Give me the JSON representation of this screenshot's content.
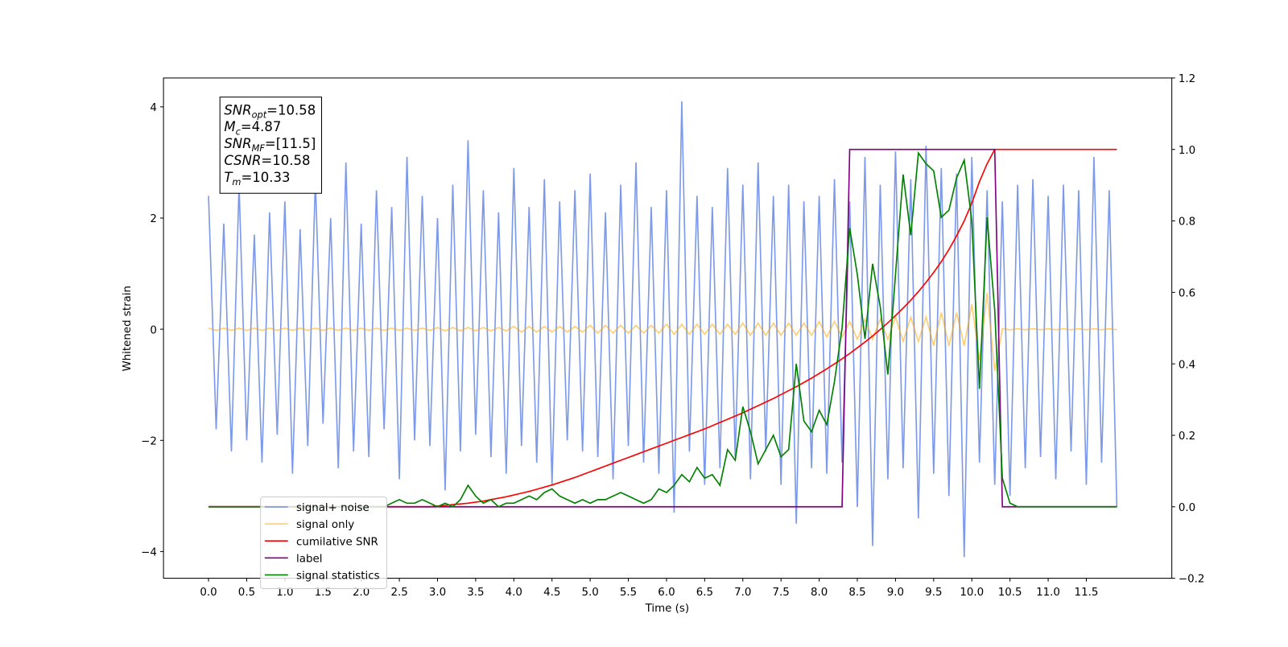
{
  "chart_data": {
    "type": "line",
    "xlabel": "Time (s)",
    "ylabel": "Whitened strain",
    "xlim": [
      -0.59,
      12.62
    ],
    "ylim": [
      -4.48,
      4.52
    ],
    "y2lim": [
      -0.2,
      1.2
    ],
    "xticks": [
      {
        "value": 0,
        "label": "0.0"
      },
      0.5,
      {
        "value": 1,
        "label": "1.0"
      },
      1.5,
      {
        "value": 2,
        "label": "2.0"
      },
      2.5,
      {
        "value": 3,
        "label": "3.0"
      },
      3.5,
      {
        "value": 4,
        "label": "4.0"
      },
      4.5,
      {
        "value": 5,
        "label": "5.0"
      },
      5.5,
      {
        "value": 6,
        "label": "6.0"
      },
      6.5,
      {
        "value": 7,
        "label": "7.0"
      },
      7.5,
      {
        "value": 8,
        "label": "8.0"
      },
      8.5,
      {
        "value": 9,
        "label": "9.0"
      },
      9.5,
      {
        "value": 10,
        "label": "10.0"
      },
      10.5,
      {
        "value": 11,
        "label": "11.0"
      },
      11.5
    ],
    "yticks": [
      {
        "value": -4,
        "label": "−4"
      },
      {
        "value": -2,
        "label": "−2"
      },
      0,
      2,
      4
    ],
    "y2ticks": [
      {
        "value": -0.2,
        "label": "−0.2"
      },
      {
        "value": 0,
        "label": "0.0"
      },
      0.2,
      0.4,
      0.6,
      0.8,
      {
        "value": 1,
        "label": "1.0"
      },
      1.2
    ],
    "legend": "lower left",
    "annotations": [
      {
        "base": "SNR",
        "sub": "opt",
        "text": "=10.58"
      },
      {
        "base": "M",
        "sub": "c",
        "text": "=4.87"
      },
      {
        "base": "SNR",
        "sub": "MF",
        "text": "=[11.5]"
      },
      {
        "base": "CSNR",
        "sub": "",
        "text": "=10.58"
      },
      {
        "base": "T",
        "sub": "m",
        "text": "=10.33"
      }
    ],
    "x": [
      0,
      0.1,
      0.2,
      0.3,
      0.4,
      0.5,
      0.6,
      0.7,
      0.8,
      0.9,
      1,
      1.1,
      1.2,
      1.3,
      1.4,
      1.5,
      1.6,
      1.7,
      1.8,
      1.9,
      2,
      2.1,
      2.2,
      2.3,
      2.4,
      2.5,
      2.6,
      2.7,
      2.8,
      2.9,
      3,
      3.1,
      3.2,
      3.3,
      3.4,
      3.5,
      3.6,
      3.7,
      3.8,
      3.9,
      4,
      4.1,
      4.2,
      4.3,
      4.4,
      4.5,
      4.6,
      4.7,
      4.8,
      4.9,
      5,
      5.1,
      5.2,
      5.3,
      5.4,
      5.5,
      5.6,
      5.7,
      5.8,
      5.9,
      6,
      6.1,
      6.2,
      6.3,
      6.4,
      6.5,
      6.6,
      6.7,
      6.8,
      6.9,
      7,
      7.1,
      7.2,
      7.3,
      7.4,
      7.5,
      7.6,
      7.7,
      7.8,
      7.9,
      8,
      8.1,
      8.2,
      8.3,
      8.4,
      8.5,
      8.6,
      8.7,
      8.8,
      8.9,
      9,
      9.1,
      9.2,
      9.3,
      9.4,
      9.5,
      9.6,
      9.7,
      9.8,
      9.9,
      10,
      10.1,
      10.2,
      10.3,
      10.4,
      10.5,
      10.6,
      10.7,
      10.8,
      10.9,
      11,
      11.1,
      11.2,
      11.3,
      11.4,
      11.5,
      11.6,
      11.7,
      11.8,
      11.9
    ],
    "series": [
      {
        "name": "signal+ noise",
        "color": "#6f8ee8",
        "opacity": 0.9,
        "axis": "y",
        "values": [
          2.4,
          -1.8,
          1.9,
          -2.2,
          2.6,
          -2.0,
          1.7,
          -2.4,
          2.1,
          -1.9,
          2.3,
          -2.6,
          1.8,
          -2.1,
          2.7,
          -1.7,
          2.0,
          -2.5,
          3.0,
          -2.2,
          1.9,
          -2.3,
          2.5,
          -1.8,
          2.2,
          -2.7,
          3.1,
          -2.0,
          2.4,
          -2.1,
          2.0,
          -2.9,
          2.6,
          -2.2,
          3.4,
          -1.9,
          2.5,
          -2.3,
          2.1,
          -2.6,
          2.9,
          -2.1,
          2.2,
          -2.4,
          2.7,
          -2.8,
          2.3,
          -2.0,
          2.5,
          -2.2,
          2.8,
          -2.3,
          2.1,
          -2.7,
          2.6,
          -2.1,
          3.0,
          -2.4,
          2.2,
          -2.6,
          2.5,
          -3.3,
          4.1,
          -2.2,
          2.4,
          -2.8,
          2.2,
          -2.5,
          2.9,
          -2.3,
          2.6,
          -2.7,
          3.0,
          -2.2,
          2.4,
          -2.8,
          2.6,
          -3.5,
          2.3,
          -2.5,
          2.4,
          -2.6,
          2.7,
          -2.4,
          2.3,
          -3.2,
          3.1,
          -3.9,
          2.6,
          -2.7,
          3.2,
          -2.5,
          2.7,
          -3.4,
          3.3,
          -2.6,
          2.9,
          -3.0,
          2.8,
          -4.1,
          3.1,
          -2.4,
          2.5,
          -2.8,
          2.3,
          -3.0,
          2.6,
          -2.5,
          2.7,
          -2.3,
          2.4,
          -2.7,
          2.6,
          -2.2,
          2.5,
          -2.8,
          3.1,
          -2.4,
          2.5,
          -3.2
        ]
      },
      {
        "name": "signal only",
        "color": "#ffa500",
        "opacity": 0.55,
        "axis": "y",
        "values": [
          0.02,
          -0.02,
          0.02,
          -0.02,
          0.02,
          -0.02,
          0.02,
          -0.02,
          0.02,
          -0.02,
          0.02,
          -0.02,
          0.02,
          -0.02,
          0.02,
          -0.02,
          0.02,
          -0.02,
          0.02,
          -0.02,
          0.02,
          -0.02,
          0.02,
          -0.02,
          0.02,
          -0.02,
          0.02,
          -0.02,
          0.02,
          -0.02,
          0.03,
          -0.03,
          0.03,
          -0.03,
          0.03,
          -0.03,
          0.03,
          -0.03,
          0.03,
          -0.03,
          0.05,
          -0.05,
          0.05,
          -0.05,
          0.05,
          -0.05,
          0.05,
          -0.05,
          0.05,
          -0.05,
          0.07,
          -0.07,
          0.07,
          -0.07,
          0.07,
          -0.07,
          0.07,
          -0.07,
          0.07,
          -0.07,
          0.09,
          -0.09,
          0.09,
          -0.09,
          0.09,
          -0.09,
          0.09,
          -0.09,
          0.09,
          -0.09,
          0.11,
          -0.11,
          0.11,
          -0.11,
          0.11,
          -0.11,
          0.11,
          -0.11,
          0.11,
          -0.11,
          0.14,
          -0.14,
          0.14,
          -0.14,
          0.14,
          -0.18,
          0.18,
          -0.18,
          0.18,
          -0.18,
          0.22,
          -0.22,
          0.22,
          -0.22,
          0.22,
          -0.3,
          0.3,
          -0.3,
          0.3,
          -0.3,
          0.45,
          -0.55,
          0.65,
          -0.75,
          0.01,
          -0.01,
          0.01,
          -0.01,
          0.01,
          -0.01,
          0.01,
          -0.01,
          0.01,
          -0.01,
          0.01,
          -0.01,
          0.01,
          -0.01,
          0.01,
          -0.01
        ]
      },
      {
        "name": "cumilative SNR",
        "color": "red",
        "opacity": 1,
        "axis": "y2",
        "values": [
          0,
          0,
          0,
          0,
          0,
          0,
          0,
          0,
          0,
          0,
          0,
          0,
          0,
          0,
          0,
          0,
          0,
          0,
          0,
          0,
          0,
          0,
          0,
          0,
          0,
          0,
          0,
          0,
          0,
          0,
          0.002,
          0.004,
          0.006,
          0.008,
          0.01,
          0.013,
          0.016,
          0.02,
          0.024,
          0.028,
          0.033,
          0.038,
          0.043,
          0.049,
          0.055,
          0.061,
          0.068,
          0.075,
          0.082,
          0.09,
          0.098,
          0.106,
          0.114,
          0.122,
          0.13,
          0.138,
          0.146,
          0.154,
          0.162,
          0.17,
          0.178,
          0.186,
          0.194,
          0.202,
          0.21,
          0.218,
          0.227,
          0.236,
          0.245,
          0.254,
          0.263,
          0.273,
          0.283,
          0.293,
          0.303,
          0.314,
          0.325,
          0.336,
          0.348,
          0.36,
          0.373,
          0.386,
          0.4,
          0.414,
          0.429,
          0.445,
          0.461,
          0.478,
          0.496,
          0.515,
          0.535,
          0.556,
          0.578,
          0.602,
          0.628,
          0.656,
          0.686,
          0.72,
          0.758,
          0.8,
          0.85,
          0.91,
          0.96,
          1,
          1,
          1,
          1,
          1,
          1,
          1,
          1,
          1,
          1,
          1,
          1,
          1,
          1,
          1,
          1,
          1
        ]
      },
      {
        "name": "label",
        "color": "purple",
        "opacity": 1,
        "axis": "y2",
        "values": [
          0,
          0,
          0,
          0,
          0,
          0,
          0,
          0,
          0,
          0,
          0,
          0,
          0,
          0,
          0,
          0,
          0,
          0,
          0,
          0,
          0,
          0,
          0,
          0,
          0,
          0,
          0,
          0,
          0,
          0,
          0,
          0,
          0,
          0,
          0,
          0,
          0,
          0,
          0,
          0,
          0,
          0,
          0,
          0,
          0,
          0,
          0,
          0,
          0,
          0,
          0,
          0,
          0,
          0,
          0,
          0,
          0,
          0,
          0,
          0,
          0,
          0,
          0,
          0,
          0,
          0,
          0,
          0,
          0,
          0,
          0,
          0,
          0,
          0,
          0,
          0,
          0,
          0,
          0,
          0,
          0,
          0,
          0,
          0,
          1,
          1,
          1,
          1,
          1,
          1,
          1,
          1,
          1,
          1,
          1,
          1,
          1,
          1,
          1,
          1,
          1,
          1,
          1,
          1,
          0,
          0,
          0,
          0,
          0,
          0,
          0,
          0,
          0,
          0,
          0,
          0,
          0,
          0,
          0,
          0
        ]
      },
      {
        "name": "signal statistics",
        "color": "green",
        "opacity": 1,
        "axis": "y2",
        "values": [
          0,
          0,
          0,
          0,
          0,
          0,
          0,
          0,
          0,
          0,
          0,
          0,
          0,
          0,
          0,
          0,
          0,
          0,
          0,
          0,
          0,
          0,
          0,
          0,
          0.01,
          0.02,
          0.01,
          0.01,
          0.02,
          0.01,
          0,
          0.01,
          0,
          0.02,
          0.06,
          0.03,
          0.01,
          0.02,
          0,
          0.01,
          0.01,
          0.02,
          0.03,
          0.02,
          0.04,
          0.05,
          0.03,
          0.02,
          0.01,
          0.02,
          0.01,
          0.02,
          0.02,
          0.03,
          0.04,
          0.03,
          0.02,
          0.01,
          0.02,
          0.05,
          0.04,
          0.06,
          0.09,
          0.07,
          0.11,
          0.08,
          0.09,
          0.06,
          0.16,
          0.13,
          0.28,
          0.21,
          0.12,
          0.16,
          0.2,
          0.14,
          0.16,
          0.4,
          0.24,
          0.21,
          0.27,
          0.23,
          0.35,
          0.5,
          0.78,
          0.65,
          0.47,
          0.68,
          0.56,
          0.37,
          0.65,
          0.93,
          0.76,
          0.99,
          0.96,
          0.94,
          0.81,
          0.83,
          0.92,
          0.97,
          0.8,
          0.33,
          0.81,
          0.55,
          0.08,
          0.01,
          0,
          0,
          0,
          0,
          0,
          0,
          0,
          0,
          0,
          0,
          0,
          0,
          0,
          0
        ]
      }
    ]
  }
}
